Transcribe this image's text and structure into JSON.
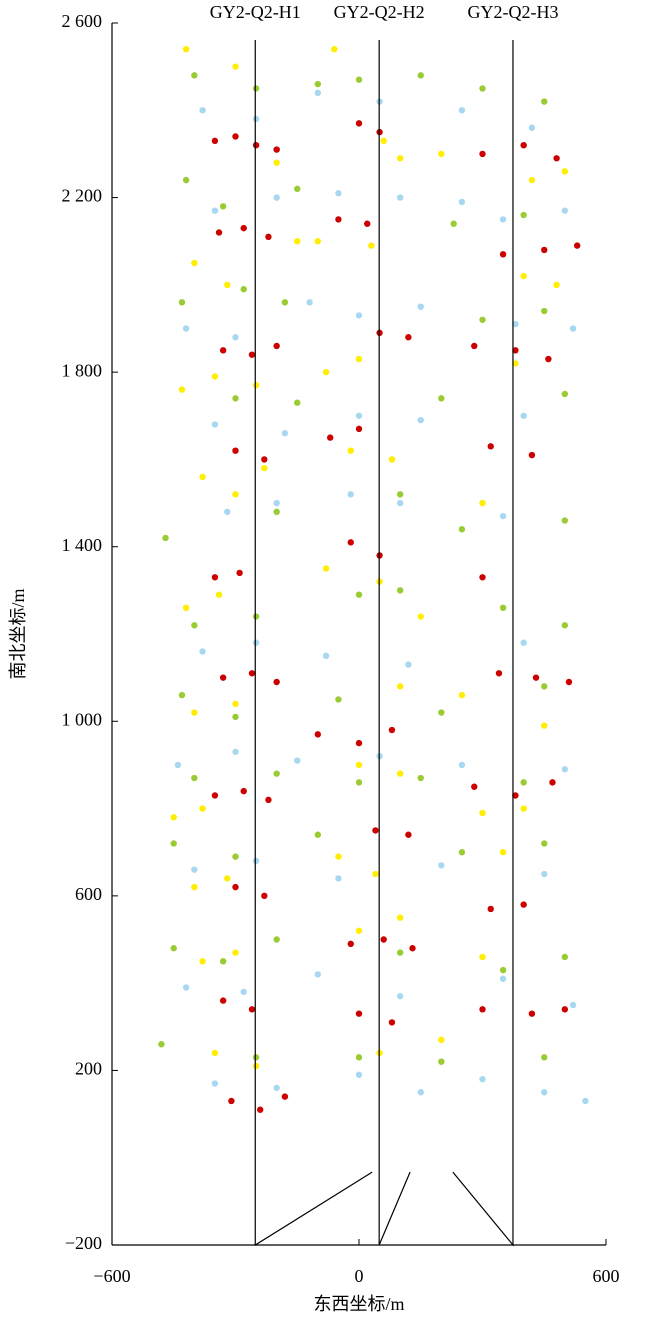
{
  "chart_data": {
    "type": "scatter",
    "xlabel": "东西坐标/m",
    "ylabel": "南北坐标/m",
    "xlim": [
      -600,
      600
    ],
    "ylim": [
      -200,
      2600
    ],
    "xticks": [
      {
        "value": -600,
        "label": "−600"
      },
      0,
      600
    ],
    "yticks": [
      {
        "value": -200,
        "label": "−200"
      },
      200,
      600,
      {
        "value": 1000,
        "label": "1 000"
      },
      {
        "value": 1400,
        "label": "1 400"
      },
      {
        "value": 1800,
        "label": "1 800"
      },
      {
        "value": 2200,
        "label": "2 200"
      },
      {
        "value": 2600,
        "label": "2 600"
      }
    ],
    "wells": [
      {
        "name": "GY2-Q2-H1",
        "x": [
          32,
          -252,
          -252
        ],
        "y": [
          -33,
          -200,
          2561
        ]
      },
      {
        "name": "GY2-Q2-H2",
        "x": [
          124,
          49,
          49
        ],
        "y": [
          -33,
          -200,
          2561
        ]
      },
      {
        "name": "GY2-Q2-H3",
        "x": [
          228,
          374,
          374
        ],
        "y": [
          -33,
          -200,
          2561
        ]
      }
    ],
    "series": [
      {
        "color": "#cc0000",
        "x": [
          -350,
          -300,
          -250,
          -200,
          0,
          50,
          300,
          400,
          480,
          -340,
          -280,
          -220,
          -50,
          20,
          350,
          450,
          530,
          -330,
          -260,
          -200,
          50,
          120,
          280,
          380,
          460,
          -300,
          -230,
          -70,
          0,
          320,
          420,
          -350,
          -290,
          -20,
          50,
          300,
          -330,
          -260,
          -200,
          340,
          430,
          510,
          -100,
          0,
          80,
          -350,
          -280,
          -220,
          280,
          380,
          470,
          -300,
          -230,
          40,
          120,
          320,
          400,
          -20,
          60,
          130,
          -330,
          -260,
          0,
          80,
          300,
          420,
          500,
          -310,
          -240,
          -180
        ],
        "y": [
          2330,
          2340,
          2320,
          2310,
          2370,
          2350,
          2300,
          2320,
          2290,
          2120,
          2130,
          2110,
          2150,
          2140,
          2070,
          2080,
          2090,
          1850,
          1840,
          1860,
          1890,
          1880,
          1860,
          1850,
          1830,
          1620,
          1600,
          1650,
          1670,
          1630,
          1610,
          1330,
          1340,
          1410,
          1380,
          1330,
          1100,
          1110,
          1090,
          1110,
          1100,
          1090,
          970,
          950,
          980,
          830,
          840,
          820,
          850,
          830,
          860,
          620,
          600,
          750,
          740,
          570,
          580,
          490,
          500,
          480,
          360,
          340,
          330,
          310,
          340,
          330,
          340,
          130,
          110,
          140
        ]
      },
      {
        "color": "#ffee00",
        "x": [
          -420,
          -300,
          -200,
          100,
          200,
          -60,
          60,
          420,
          500,
          -400,
          -320,
          -150,
          -100,
          30,
          400,
          480,
          -430,
          -350,
          -250,
          -80,
          0,
          380,
          -380,
          -300,
          -230,
          -20,
          80,
          300,
          -420,
          -340,
          -80,
          50,
          150,
          -400,
          -300,
          100,
          250,
          450,
          -450,
          -380,
          0,
          100,
          300,
          400,
          -400,
          -320,
          -50,
          40,
          350,
          -380,
          -300,
          0,
          100,
          300,
          -350,
          -250,
          50,
          200
        ],
        "y": [
          2540,
          2500,
          2280,
          2290,
          2300,
          2540,
          2330,
          2240,
          2260,
          2050,
          2000,
          2100,
          2100,
          2090,
          2020,
          2000,
          1760,
          1790,
          1770,
          1800,
          1830,
          1820,
          1560,
          1520,
          1580,
          1620,
          1600,
          1500,
          1260,
          1290,
          1350,
          1320,
          1240,
          1020,
          1040,
          1080,
          1060,
          990,
          780,
          800,
          900,
          880,
          790,
          800,
          620,
          640,
          690,
          650,
          700,
          450,
          470,
          520,
          550,
          460,
          240,
          210,
          240,
          270
        ]
      },
      {
        "color": "#99cc33",
        "x": [
          -400,
          -250,
          -100,
          0,
          150,
          300,
          450,
          -420,
          -330,
          -150,
          230,
          400,
          -430,
          -280,
          -180,
          300,
          450,
          -300,
          -150,
          200,
          500,
          -470,
          -200,
          100,
          250,
          500,
          -400,
          -250,
          0,
          100,
          350,
          500,
          -430,
          -300,
          -50,
          200,
          450,
          -400,
          -200,
          0,
          150,
          400,
          -450,
          -300,
          -100,
          250,
          450,
          -450,
          -330,
          -200,
          100,
          350,
          500,
          -480,
          -250,
          0,
          200,
          450
        ],
        "y": [
          2480,
          2450,
          2460,
          2470,
          2480,
          2450,
          2420,
          2240,
          2180,
          2220,
          2140,
          2160,
          1960,
          1990,
          1960,
          1920,
          1940,
          1740,
          1730,
          1740,
          1750,
          1420,
          1480,
          1520,
          1440,
          1460,
          1220,
          1240,
          1290,
          1300,
          1260,
          1220,
          1060,
          1010,
          1050,
          1020,
          1080,
          870,
          880,
          860,
          870,
          860,
          720,
          690,
          740,
          700,
          720,
          480,
          450,
          500,
          470,
          430,
          460,
          260,
          230,
          230,
          220,
          230
        ]
      },
      {
        "color": "#a8d8f0",
        "x": [
          -380,
          -250,
          -100,
          50,
          250,
          420,
          -350,
          -200,
          -50,
          100,
          250,
          350,
          500,
          -420,
          -300,
          -120,
          0,
          150,
          380,
          520,
          -350,
          -180,
          0,
          150,
          400,
          -320,
          -200,
          -20,
          100,
          350,
          -380,
          -250,
          -80,
          120,
          400,
          -440,
          -300,
          -150,
          50,
          250,
          500,
          -400,
          -250,
          -50,
          200,
          450,
          -420,
          -280,
          -100,
          100,
          350,
          520,
          -350,
          -200,
          0,
          150,
          300,
          450,
          550
        ],
        "y": [
          2400,
          2380,
          2440,
          2420,
          2400,
          2360,
          2170,
          2200,
          2210,
          2200,
          2190,
          2150,
          2170,
          1900,
          1880,
          1960,
          1930,
          1950,
          1910,
          1900,
          1680,
          1660,
          1700,
          1690,
          1700,
          1480,
          1500,
          1520,
          1500,
          1470,
          1160,
          1180,
          1150,
          1130,
          1180,
          900,
          930,
          910,
          920,
          900,
          890,
          660,
          680,
          640,
          670,
          650,
          390,
          380,
          420,
          370,
          410,
          350,
          170,
          160,
          190,
          150,
          180,
          150,
          130
        ]
      }
    ]
  }
}
